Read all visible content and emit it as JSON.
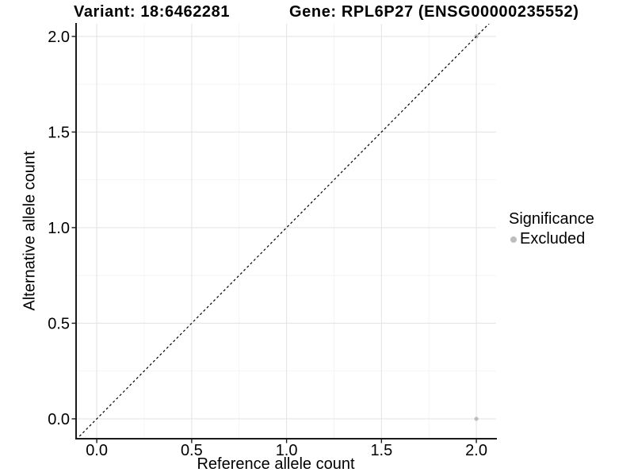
{
  "titles": {
    "variant": "Variant: 18:6462281",
    "gene": "Gene: RPL6P27 (ENSG00000235552)"
  },
  "chart_data": {
    "type": "scatter",
    "xlabel": "Reference allele count",
    "ylabel": "Alternative allele count",
    "xlim": [
      -0.109,
      2.104
    ],
    "ylim": [
      -0.104,
      2.066
    ],
    "x_ticks": {
      "values": [
        0,
        0.5,
        1,
        1.5,
        2
      ],
      "labels": [
        "0.0",
        "0.5",
        "1.0",
        "1.5",
        "2.0"
      ]
    },
    "y_ticks": {
      "values": [
        0,
        0.5,
        1,
        1.5,
        2
      ],
      "labels": [
        "0.0",
        "0.5",
        "1.0",
        "1.5",
        "2.0"
      ]
    },
    "minor_x": [
      0.25,
      0.75,
      1.25,
      1.75
    ],
    "minor_y": [
      0.25,
      0.75,
      1.25,
      1.75
    ],
    "grid": true,
    "points": [
      {
        "x": 2.0,
        "y": 0.0,
        "series": "Excluded"
      },
      {
        "x": 2.0,
        "y": 2.0,
        "series": "Excluded"
      }
    ],
    "reference_line": {
      "type": "identity",
      "slope": 1,
      "intercept": 0,
      "style": "dashed"
    },
    "legend": {
      "title": "Significance",
      "position": "right",
      "items": [
        {
          "label": "Excluded",
          "color": "#bdbdbd"
        }
      ]
    },
    "colors": {
      "point_excluded": "#bdbdbd",
      "grid_major": "#e5e5e5",
      "grid_minor": "#f2f2f2",
      "axis_line": "#1a1a1a",
      "tick_mark": "#1a1a1a",
      "dashed_line": "#000000",
      "text": "#000000",
      "background": "#ffffff"
    }
  }
}
